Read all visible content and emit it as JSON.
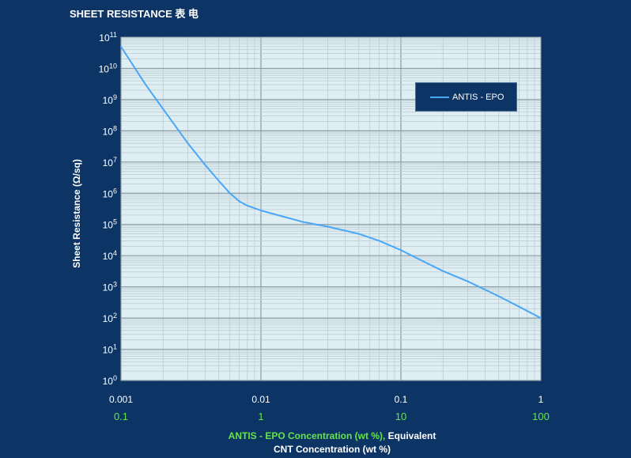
{
  "title": "SHEET RESISTANCE 表    电",
  "chart_data": {
    "type": "line",
    "xscale": "log",
    "yscale": "log",
    "xlim": [
      0.001,
      1
    ],
    "ylim": [
      1,
      100000000000
    ],
    "x_ticks": [
      "0.001",
      "0.01",
      "0.1",
      "1"
    ],
    "x_secondary_ticks": [
      "0.1",
      "1",
      "10",
      "100"
    ],
    "y_tick_exponents": [
      "0",
      "1",
      "2",
      "3",
      "4",
      "5",
      "6",
      "7",
      "8",
      "9",
      "10",
      "11"
    ],
    "y_tick_base": "10",
    "ylabel": "Sheet Resistance (Ω/sq)",
    "xlabel_green": "ANTIS - EPO Concentration (wt %),",
    "xlabel_white_1": " Equivalent",
    "xlabel_white_2": "CNT Concentration (wt %)",
    "legend_position": "top-right",
    "grid": true,
    "series": [
      {
        "name": "ANTIS - EPO",
        "color": "#4aa6f7",
        "x": [
          0.001,
          0.0015,
          0.002,
          0.003,
          0.004,
          0.005,
          0.006,
          0.007,
          0.008,
          0.01,
          0.015,
          0.02,
          0.03,
          0.05,
          0.07,
          0.1,
          0.15,
          0.2,
          0.3,
          0.5,
          0.7,
          1.0
        ],
        "y": [
          50000000000,
          3000000000,
          500000000,
          40000000,
          8000000,
          2500000,
          1000000,
          550000,
          400000,
          280000,
          170000,
          120000,
          85000,
          50000,
          30000,
          15000,
          6000,
          3200,
          1500,
          500,
          230,
          100
        ]
      }
    ]
  },
  "colors": {
    "background": "#0c3566",
    "plot_area": "#dfeef3",
    "grid_minor": "#bcccd3",
    "grid_major": "#8c9ba3",
    "x_secondary": "#66e34a"
  }
}
